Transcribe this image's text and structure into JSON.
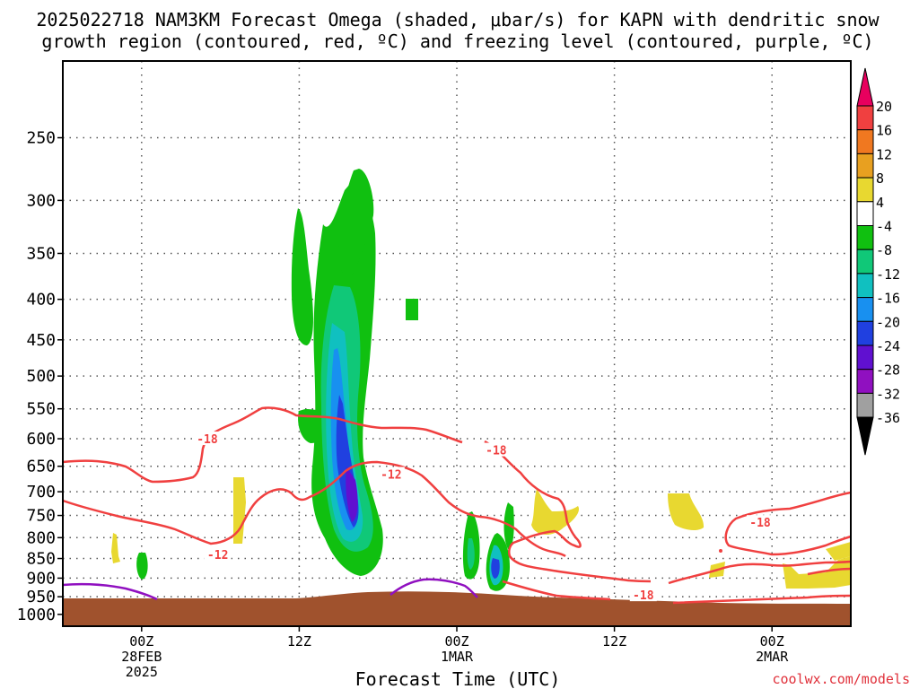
{
  "chart_data": {
    "type": "time-height cross section",
    "title_line1": "2025022718 NAM3KM Forecast Omega (shaded, μbar/s) for KAPN with dendritic snow",
    "title_line2": "growth region (contoured, red, ºC) and freezing level (contoured, purple, ºC)",
    "xlabel": "Forecast Time (UTC)",
    "credit": "coolwx.com/models",
    "x_ticks": [
      {
        "label": "00Z",
        "sub1": "28FEB",
        "sub2": "2025",
        "hours": 6
      },
      {
        "label": "12Z",
        "sub1": "",
        "sub2": "",
        "hours": 18
      },
      {
        "label": "00Z",
        "sub1": "1MAR",
        "sub2": "",
        "hours": 30
      },
      {
        "label": "12Z",
        "sub1": "",
        "sub2": "",
        "hours": 42
      },
      {
        "label": "00Z",
        "sub1": "2MAR",
        "sub2": "",
        "hours": 54
      }
    ],
    "x_range_hours": [
      0,
      60
    ],
    "y_ticks": [
      250,
      300,
      350,
      400,
      450,
      500,
      550,
      600,
      650,
      700,
      750,
      800,
      850,
      900,
      950,
      1000
    ],
    "y_labels": [
      "250",
      "300",
      "350",
      "400",
      "450",
      "500",
      "550",
      "600",
      "650",
      "700",
      "750",
      "800",
      "850",
      "900",
      "950",
      "1000"
    ],
    "y_range_hpa": [
      200,
      1035
    ],
    "y_scale": "log-pressure",
    "grid": true,
    "colorbar": {
      "labels": [
        "20",
        "16",
        "12",
        "8",
        "4",
        "-4",
        "-8",
        "-12",
        "-16",
        "-20",
        "-24",
        "-28",
        "-32",
        "-36"
      ],
      "colors": [
        "#e8005e",
        "#f04040",
        "#f07820",
        "#e8a020",
        "#e8d830",
        "#ffffff",
        "#10c010",
        "#10c878",
        "#10c0c0",
        "#1890f0",
        "#2040e0",
        "#6010d0",
        "#9010c0",
        "#a0a0a0",
        "#000000"
      ]
    },
    "contour_labels": [
      {
        "text": "-18",
        "hours": 11.0,
        "hpa": 600
      },
      {
        "text": "-18",
        "hours": 33.0,
        "hpa": 620
      },
      {
        "text": "-12",
        "hours": 25.0,
        "hpa": 665
      },
      {
        "text": "-12",
        "hours": 11.8,
        "hpa": 840
      },
      {
        "text": "-18",
        "hours": 44.2,
        "hpa": 945
      },
      {
        "text": "-18",
        "hours": 53.1,
        "hpa": 765
      }
    ],
    "colors": {
      "dsgz": "#f04040",
      "freezing": "#9010c0",
      "terrain": "#a0522d"
    }
  }
}
